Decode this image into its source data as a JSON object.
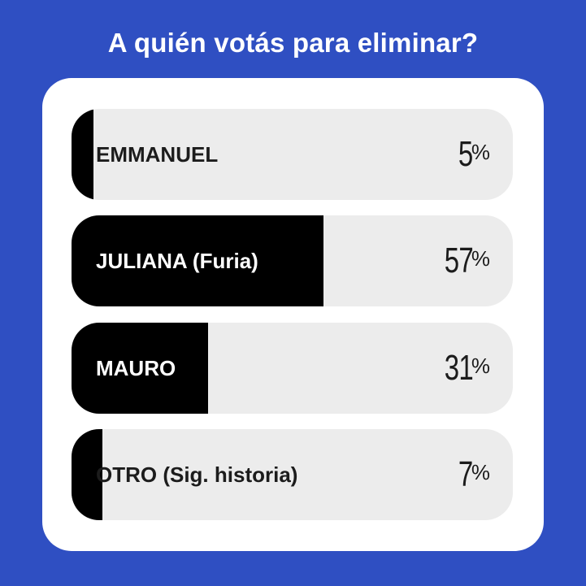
{
  "poll": {
    "question": "A quién votás para eliminar?",
    "percent_sign": "%",
    "options": [
      {
        "label": "EMMANUEL",
        "percent": "5",
        "fill_fraction": 0.05
      },
      {
        "label": "JULIANA (Furia)",
        "percent": "57",
        "fill_fraction": 0.57
      },
      {
        "label": "MAURO",
        "percent": "31",
        "fill_fraction": 0.31
      },
      {
        "label": "OTRO (Sig. historia)",
        "percent": "7",
        "fill_fraction": 0.07
      }
    ]
  },
  "colors": {
    "background": "#2f4fc2",
    "card": "#ffffff",
    "track": "#ececec",
    "fill": "#000000",
    "title_text": "#ffffff",
    "text_on_fill": "#ffffff",
    "text_on_track": "#1c1c1c"
  }
}
